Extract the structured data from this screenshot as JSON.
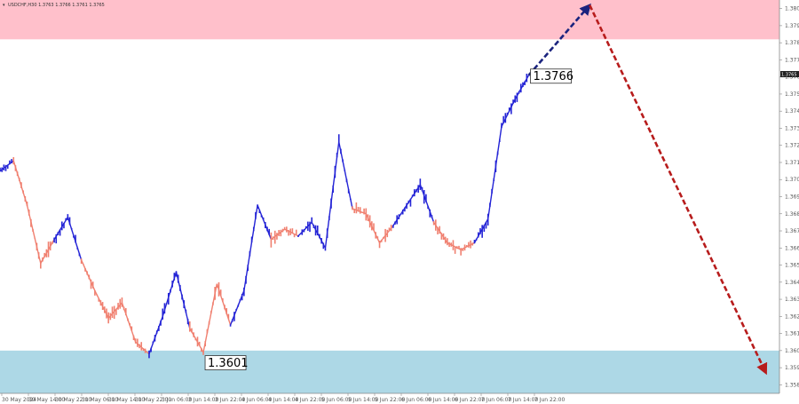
{
  "header": {
    "symbol_line": "USDCHF,H30 1.3763 1.3766 1.3761 1.3765"
  },
  "price_badge": "1.3765",
  "colors": {
    "upper_zone": "#ffc0cb",
    "lower_zone": "#add8e6",
    "bull_wave": "#2424d6",
    "bear_wave": "#f08070",
    "projection_up": "#1a237e",
    "projection_down": "#b71c1c",
    "badge_bg": "#222222"
  },
  "chart_data": {
    "type": "line",
    "ylim": [
      1.358,
      1.381
    ],
    "y_ticks": [
      "1.3805",
      "1.3795",
      "1.3785",
      "1.3775",
      "1.3765",
      "1.3755",
      "1.3745",
      "1.3735",
      "1.3725",
      "1.3715",
      "1.3705",
      "1.3695",
      "1.3685",
      "1.3675",
      "1.3665",
      "1.3655",
      "1.3645",
      "1.3635",
      "1.3625",
      "1.3615",
      "1.3605",
      "1.3595",
      "1.3585"
    ],
    "x_ticks": [
      "30 May 2024",
      "30 May 14:00",
      "30 May 22:00",
      "31 May 06:00",
      "31 May 14:00",
      "31 May 22:00",
      "3 Jun 06:00",
      "3 Jun 14:00",
      "3 Jun 22:00",
      "4 Jun 06:00",
      "4 Jun 14:00",
      "4 Jun 22:00",
      "5 Jun 06:00",
      "5 Jun 14:00",
      "5 Jun 22:00",
      "6 Jun 06:00",
      "6 Jun 14:00",
      "6 Jun 22:00",
      "7 Jun 06:00",
      "7 Jun 14:00",
      "7 Jun 22:00"
    ],
    "zones": [
      {
        "name": "resistance",
        "from": 1.3787,
        "to": 1.381
      },
      {
        "name": "support",
        "from": 1.358,
        "to": 1.3605
      }
    ],
    "price_path": [
      {
        "x": 0,
        "y": 1.371,
        "wave": "bull"
      },
      {
        "x": 1,
        "y": 1.3716,
        "wave": "bull"
      },
      {
        "x": 2,
        "y": 1.369,
        "wave": "bear"
      },
      {
        "x": 3,
        "y": 1.3656,
        "wave": "bear"
      },
      {
        "x": 4,
        "y": 1.367,
        "wave": "bear"
      },
      {
        "x": 5,
        "y": 1.3683,
        "wave": "bull"
      },
      {
        "x": 6,
        "y": 1.3658,
        "wave": "bull"
      },
      {
        "x": 7,
        "y": 1.364,
        "wave": "bear"
      },
      {
        "x": 8,
        "y": 1.3624,
        "wave": "bear"
      },
      {
        "x": 9,
        "y": 1.3633,
        "wave": "bear"
      },
      {
        "x": 10,
        "y": 1.361,
        "wave": "bear"
      },
      {
        "x": 11,
        "y": 1.3603,
        "wave": "bear"
      },
      {
        "x": 12,
        "y": 1.3625,
        "wave": "bull"
      },
      {
        "x": 13,
        "y": 1.3651,
        "wave": "bull"
      },
      {
        "x": 14,
        "y": 1.3618,
        "wave": "bull"
      },
      {
        "x": 15,
        "y": 1.3604,
        "wave": "bear"
      },
      {
        "x": 16,
        "y": 1.3644,
        "wave": "bear"
      },
      {
        "x": 17,
        "y": 1.362,
        "wave": "bear"
      },
      {
        "x": 18,
        "y": 1.364,
        "wave": "bull"
      },
      {
        "x": 19,
        "y": 1.369,
        "wave": "bull"
      },
      {
        "x": 20,
        "y": 1.367,
        "wave": "bull"
      },
      {
        "x": 21,
        "y": 1.3676,
        "wave": "bear"
      },
      {
        "x": 22,
        "y": 1.3672,
        "wave": "bear"
      },
      {
        "x": 23,
        "y": 1.368,
        "wave": "bull"
      },
      {
        "x": 24,
        "y": 1.3665,
        "wave": "bull"
      },
      {
        "x": 25,
        "y": 1.3727,
        "wave": "bull"
      },
      {
        "x": 26,
        "y": 1.3688,
        "wave": "bull"
      },
      {
        "x": 27,
        "y": 1.3685,
        "wave": "bear"
      },
      {
        "x": 28,
        "y": 1.3668,
        "wave": "bear"
      },
      {
        "x": 29,
        "y": 1.3678,
        "wave": "bear"
      },
      {
        "x": 30,
        "y": 1.369,
        "wave": "bull"
      },
      {
        "x": 31,
        "y": 1.3702,
        "wave": "bull"
      },
      {
        "x": 32,
        "y": 1.368,
        "wave": "bull"
      },
      {
        "x": 33,
        "y": 1.3668,
        "wave": "bear"
      },
      {
        "x": 34,
        "y": 1.3664,
        "wave": "bear"
      },
      {
        "x": 35,
        "y": 1.3668,
        "wave": "bear"
      },
      {
        "x": 36,
        "y": 1.3682,
        "wave": "bull"
      },
      {
        "x": 37,
        "y": 1.3736,
        "wave": "bull"
      },
      {
        "x": 38,
        "y": 1.3752,
        "wave": "bull"
      },
      {
        "x": 39,
        "y": 1.3766,
        "wave": "bull"
      }
    ],
    "labels": [
      {
        "text": "1.3766",
        "x": 39,
        "y": 1.3766
      },
      {
        "text": "1.3601",
        "x": 15,
        "y": 1.3601
      }
    ],
    "projections": [
      {
        "name": "projection-up",
        "from": {
          "x": 39,
          "y": 1.3766
        },
        "to": {
          "x": 43.5,
          "y": 1.3807
        }
      },
      {
        "name": "projection-down",
        "from": {
          "x": 43.5,
          "y": 1.3807
        },
        "to": {
          "x": 56.5,
          "y": 1.3592
        }
      }
    ],
    "x_range": [
      0,
      57.5
    ]
  }
}
